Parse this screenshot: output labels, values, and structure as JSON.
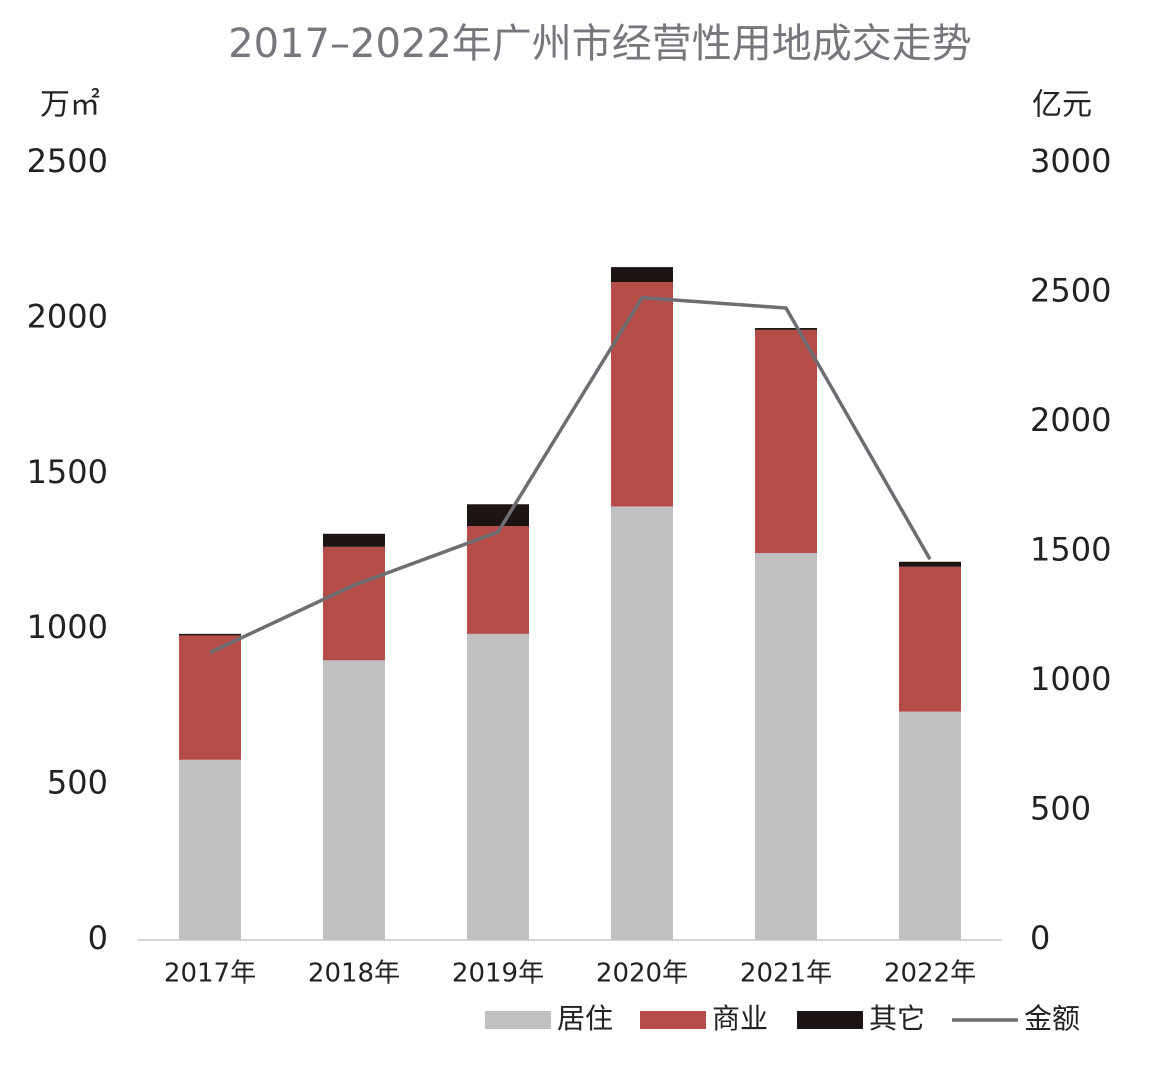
{
  "chart_data": {
    "type": "bar",
    "stacked": true,
    "title": "2017–2022年广州市经营性用地成交走势",
    "y_label": "万㎡",
    "y2_label": "亿元",
    "categories": [
      "2017年",
      "2018年",
      "2019年",
      "2020年",
      "2021年",
      "2022年"
    ],
    "series": [
      {
        "name": "居住",
        "type": "bar",
        "color": "#c0bfc1",
        "values": [
          580,
          900,
          985,
          1395,
          1245,
          735
        ]
      },
      {
        "name": "商业",
        "type": "bar",
        "color": "#b44c47",
        "values": [
          400,
          365,
          347,
          722,
          718,
          466
        ]
      },
      {
        "name": "其它",
        "type": "bar",
        "color": "#1e1414",
        "values": [
          5,
          42,
          70,
          48,
          6,
          16
        ]
      },
      {
        "name": "金额",
        "type": "line",
        "axis": "y2",
        "color": "#6e6d72",
        "values": [
          1110,
          1370,
          1575,
          2480,
          2440,
          1470
        ]
      }
    ],
    "ylim": [
      0,
      2500
    ],
    "yticks": [
      0,
      500,
      1000,
      1500,
      2000,
      2500
    ],
    "y2lim": [
      0,
      3000
    ],
    "y2ticks": [
      0,
      500,
      1000,
      1500,
      2000,
      2500,
      3000
    ],
    "grid": false,
    "legend": "bottom"
  }
}
